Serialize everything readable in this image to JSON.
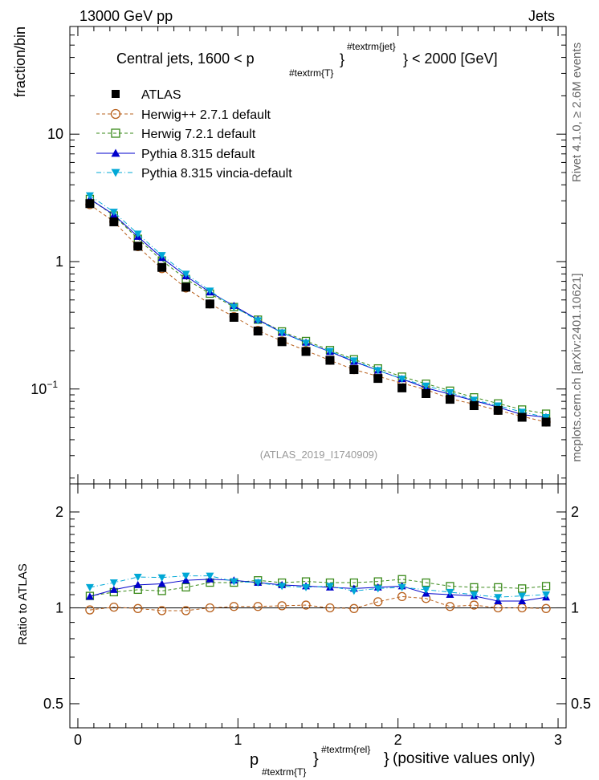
{
  "header": {
    "energy": "13000 GeV pp",
    "category": "Jets",
    "side_right": "Rivet 4.1.0, ≥ 2.6M events",
    "side_right2": "mcplots.cern.ch [arXiv:2401.10621]"
  },
  "chart_data": [
    {
      "type": "scatter",
      "panel": "main",
      "title": "Central jets, 1600 < p",
      "title_sub": "#textrm{T}",
      "title_sup": "#textrm{jet}",
      "title_tail": "< 2000 [GeV]",
      "ylabel": "fraction/bin",
      "yscale": "log",
      "ylim": [
        0.018,
        70
      ],
      "xlim": [
        -0.05,
        3.05
      ],
      "yticks": [
        {
          "value": 10,
          "label": "10"
        },
        {
          "value": 1,
          "label": "1"
        },
        {
          "value": 0.1,
          "label": "10",
          "sup": "−1"
        }
      ],
      "watermark": "(ATLAS_2019_I1740909)",
      "x": [
        0.075,
        0.225,
        0.375,
        0.525,
        0.675,
        0.825,
        0.975,
        1.125,
        1.275,
        1.425,
        1.575,
        1.725,
        1.875,
        2.025,
        2.175,
        2.325,
        2.475,
        2.625,
        2.775,
        2.925
      ],
      "series": [
        {
          "name": "ATLAS",
          "color": "#000000",
          "marker": "square-filled",
          "line": "none",
          "values": [
            2.85,
            2.05,
            1.32,
            0.9,
            0.63,
            0.465,
            0.365,
            0.285,
            0.235,
            0.197,
            0.168,
            0.142,
            0.121,
            0.102,
            0.092,
            0.083,
            0.074,
            0.068,
            0.06,
            0.055
          ]
        },
        {
          "name": "Herwig++ 2.7.1 default",
          "color": "#b8601c",
          "marker": "circle-open",
          "line": "dashed",
          "values": [
            2.8,
            2.06,
            1.31,
            0.88,
            0.62,
            0.465,
            0.37,
            0.288,
            0.238,
            0.2,
            0.168,
            0.142,
            0.126,
            0.111,
            0.099,
            0.084,
            0.076,
            0.068,
            0.061,
            0.055
          ]
        },
        {
          "name": "Herwig 7.2.1 default",
          "color": "#3a8a1a",
          "marker": "square-open",
          "line": "dashed",
          "values": [
            3.1,
            2.3,
            1.51,
            1.02,
            0.73,
            0.56,
            0.44,
            0.35,
            0.283,
            0.238,
            0.202,
            0.171,
            0.145,
            0.125,
            0.11,
            0.097,
            0.086,
            0.077,
            0.069,
            0.064
          ]
        },
        {
          "name": "Pythia 8.315 default",
          "color": "#0000cc",
          "marker": "triangle-up",
          "line": "solid",
          "values": [
            3.1,
            2.33,
            1.57,
            1.07,
            0.77,
            0.575,
            0.45,
            0.35,
            0.277,
            0.232,
            0.196,
            0.164,
            0.14,
            0.12,
            0.102,
            0.091,
            0.081,
            0.072,
            0.063,
            0.06
          ]
        },
        {
          "name": "Pythia 8.315 vincia-default",
          "color": "#00a8d6",
          "marker": "triangle-down",
          "line": "dashdot",
          "values": [
            3.3,
            2.45,
            1.65,
            1.12,
            0.8,
            0.59,
            0.44,
            0.345,
            0.277,
            0.23,
            0.198,
            0.167,
            0.14,
            0.12,
            0.106,
            0.094,
            0.082,
            0.074,
            0.066,
            0.06
          ]
        }
      ],
      "legend_position": "top-left"
    },
    {
      "type": "scatter",
      "panel": "ratio",
      "ylabel": "Ratio to ATLAS",
      "xlabel": "p",
      "xlabel_sub": "#textrm{T}",
      "xlabel_sup": "#textrm{rel}",
      "xlabel_tail": "(positive values only)",
      "yscale": "log",
      "ylim": [
        0.42,
        2.45
      ],
      "xlim": [
        -0.05,
        3.05
      ],
      "yticks": [
        {
          "value": 2,
          "label": "2"
        },
        {
          "value": 1,
          "label": "1"
        },
        {
          "value": 0.5,
          "label": "0.5"
        }
      ],
      "xticks": [
        {
          "value": 0,
          "label": "0"
        },
        {
          "value": 1,
          "label": "1"
        },
        {
          "value": 2,
          "label": "2"
        },
        {
          "value": 3,
          "label": "3"
        }
      ],
      "x": [
        0.075,
        0.225,
        0.375,
        0.525,
        0.675,
        0.825,
        0.975,
        1.125,
        1.275,
        1.425,
        1.575,
        1.725,
        1.875,
        2.025,
        2.175,
        2.325,
        2.475,
        2.625,
        2.775,
        2.925
      ],
      "series": [
        {
          "name": "Herwig++ 2.7.1 default",
          "color": "#b8601c",
          "marker": "circle-open",
          "line": "dashed",
          "values": [
            0.985,
            1.005,
            0.995,
            0.98,
            0.98,
            1.0,
            1.01,
            1.01,
            1.015,
            1.02,
            1.0,
            0.995,
            1.045,
            1.085,
            1.07,
            1.01,
            1.02,
            1.0,
            1.0,
            0.995
          ]
        },
        {
          "name": "Herwig 7.2.1 default",
          "color": "#3a8a1a",
          "marker": "square-open",
          "line": "dashed",
          "values": [
            1.09,
            1.12,
            1.14,
            1.13,
            1.16,
            1.2,
            1.2,
            1.22,
            1.2,
            1.21,
            1.2,
            1.2,
            1.21,
            1.23,
            1.2,
            1.17,
            1.16,
            1.16,
            1.15,
            1.17
          ]
        },
        {
          "name": "Pythia 8.315 default",
          "color": "#0000cc",
          "marker": "triangle-up",
          "line": "solid",
          "values": [
            1.085,
            1.14,
            1.18,
            1.19,
            1.22,
            1.23,
            1.22,
            1.2,
            1.18,
            1.17,
            1.16,
            1.15,
            1.16,
            1.17,
            1.11,
            1.1,
            1.09,
            1.05,
            1.05,
            1.08
          ]
        },
        {
          "name": "Pythia 8.315 vincia-default",
          "color": "#00a8d6",
          "marker": "triangle-down",
          "line": "dashdot",
          "values": [
            1.16,
            1.2,
            1.25,
            1.245,
            1.26,
            1.26,
            1.21,
            1.2,
            1.17,
            1.16,
            1.17,
            1.13,
            1.15,
            1.16,
            1.14,
            1.12,
            1.1,
            1.08,
            1.09,
            1.1
          ]
        }
      ]
    }
  ]
}
